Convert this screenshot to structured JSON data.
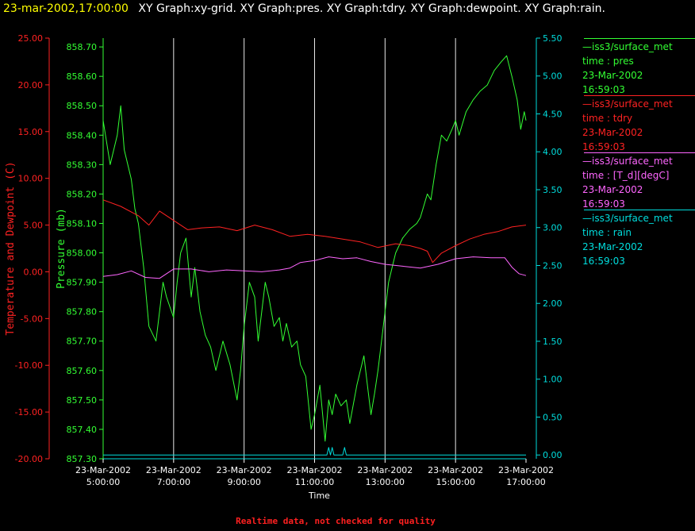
{
  "header": {
    "timestamp": "23-mar-2002,17:00:00",
    "titles": "XY Graph:xy-grid.  XY Graph:pres.  XY Graph:tdry.  XY Graph:dewpoint.  XY Graph:rain."
  },
  "footer": "Realtime data, not checked for quality",
  "legend": [
    {
      "line1": "—iss3/surface_met",
      "line2": "time : pres",
      "line3": "23-Mar-2002",
      "line4": "16:59:03",
      "color": "#33ff33"
    },
    {
      "line1": "—iss3/surface_met",
      "line2": "time : tdry",
      "line3": "23-Mar-2002",
      "line4": "16:59:03",
      "color": "#ff2222"
    },
    {
      "line1": "—iss3/surface_met",
      "line2": "time : [T_d][degC]",
      "line3": "23-Mar-2002",
      "line4": "16:59:03",
      "color": "#ff66ff"
    },
    {
      "line1": "—iss3/surface_met",
      "line2": "time : rain",
      "line3": "23-Mar-2002",
      "line4": "16:59:03",
      "color": "#00dddd"
    }
  ],
  "chart_data": {
    "type": "line",
    "xlabel": "Time",
    "x_ticks": [
      {
        "h": 5,
        "date": "23-Mar-2002",
        "time": "5:00:00"
      },
      {
        "h": 7,
        "date": "23-Mar-2002",
        "time": "7:00:00"
      },
      {
        "h": 9,
        "date": "23-Mar-2002",
        "time": "9:00:00"
      },
      {
        "h": 11,
        "date": "23-Mar-2002",
        "time": "11:00:00"
      },
      {
        "h": 13,
        "date": "23-Mar-2002",
        "time": "13:00:00"
      },
      {
        "h": 15,
        "date": "23-Mar-2002",
        "time": "15:00:00"
      },
      {
        "h": 17,
        "date": "23-Mar-2002",
        "time": "17:00:00"
      }
    ],
    "xlim": [
      5,
      17
    ],
    "grid": "vertical",
    "axes": {
      "temp": {
        "label": "Temperature and Dewpoint (C)",
        "ylim": [
          -20,
          25
        ],
        "ticks": [
          "25.00",
          "20.00",
          "15.00",
          "10.00",
          "5.00",
          "0.00",
          "-5.00",
          "-10.00",
          "-15.00",
          "-20.00"
        ],
        "color": "#ff2222"
      },
      "pres": {
        "label": "Pressure (mb)",
        "ylim": [
          857.3,
          858.73
        ],
        "ticks": [
          "858.70",
          "858.60",
          "858.50",
          "858.40",
          "858.30",
          "858.20",
          "858.10",
          "858.00",
          "857.90",
          "857.80",
          "857.70",
          "857.60",
          "857.50",
          "857.40",
          "857.30"
        ],
        "color": "#33ff33"
      },
      "rain": {
        "label": "",
        "ylim": [
          -0.05,
          5.5
        ],
        "ticks": [
          "5.50",
          "5.00",
          "4.50",
          "4.00",
          "3.50",
          "3.00",
          "2.50",
          "2.00",
          "1.50",
          "1.00",
          "0.50",
          "0.00"
        ],
        "color": "#00dddd"
      }
    },
    "series": [
      {
        "axis": "pres",
        "color": "#33ff33",
        "x": [
          5.0,
          5.2,
          5.4,
          5.5,
          5.6,
          5.8,
          5.9,
          6.0,
          6.15,
          6.3,
          6.5,
          6.6,
          6.7,
          6.8,
          7.0,
          7.1,
          7.2,
          7.35,
          7.5,
          7.6,
          7.75,
          7.9,
          8.05,
          8.2,
          8.4,
          8.6,
          8.8,
          8.9,
          9.0,
          9.15,
          9.3,
          9.4,
          9.5,
          9.6,
          9.7,
          9.85,
          10.0,
          10.1,
          10.2,
          10.35,
          10.5,
          10.6,
          10.75,
          10.9,
          11.0,
          11.15,
          11.3,
          11.4,
          11.5,
          11.6,
          11.75,
          11.9,
          12.0,
          12.2,
          12.4,
          12.5,
          12.6,
          12.7,
          12.8,
          12.9,
          13.0,
          13.1,
          13.2,
          13.3,
          13.5,
          13.7,
          13.9,
          14.0,
          14.2,
          14.3,
          14.45,
          14.6,
          14.75,
          14.9,
          15.0,
          15.1,
          15.3,
          15.5,
          15.7,
          15.9,
          16.1,
          16.3,
          16.45,
          16.6,
          16.75,
          16.85,
          16.95,
          17.0
        ],
        "y": [
          858.45,
          858.3,
          858.4,
          858.5,
          858.35,
          858.25,
          858.15,
          858.1,
          857.95,
          857.75,
          857.7,
          857.8,
          857.9,
          857.85,
          857.78,
          857.9,
          858.0,
          858.05,
          857.85,
          857.95,
          857.8,
          857.72,
          857.68,
          857.6,
          857.7,
          857.62,
          857.5,
          857.6,
          857.75,
          857.9,
          857.85,
          857.7,
          857.8,
          857.9,
          857.85,
          857.75,
          857.78,
          857.7,
          857.76,
          857.68,
          857.7,
          857.62,
          857.58,
          857.4,
          857.45,
          857.55,
          857.36,
          857.5,
          857.45,
          857.52,
          857.48,
          857.5,
          857.42,
          857.55,
          857.65,
          857.55,
          857.45,
          857.52,
          857.6,
          857.7,
          857.8,
          857.9,
          857.95,
          858.0,
          858.05,
          858.08,
          858.1,
          858.12,
          858.2,
          858.18,
          858.3,
          858.4,
          858.38,
          858.42,
          858.45,
          858.4,
          858.48,
          858.52,
          858.55,
          858.57,
          858.62,
          858.65,
          858.67,
          858.6,
          858.52,
          858.42,
          858.48,
          858.45
        ]
      },
      {
        "axis": "temp",
        "color": "#ff2222",
        "x": [
          5.0,
          5.5,
          6.0,
          6.3,
          6.6,
          7.0,
          7.4,
          7.8,
          8.3,
          8.8,
          9.3,
          9.8,
          10.3,
          10.8,
          11.3,
          11.8,
          12.3,
          12.8,
          13.3,
          13.7,
          14.0,
          14.2,
          14.35,
          14.6,
          15.0,
          15.4,
          15.8,
          16.2,
          16.6,
          17.0
        ],
        "y": [
          7.7,
          7.0,
          6.0,
          5.0,
          6.5,
          5.5,
          4.5,
          4.7,
          4.8,
          4.4,
          5.0,
          4.5,
          3.8,
          4.0,
          3.8,
          3.5,
          3.2,
          2.6,
          3.0,
          2.8,
          2.5,
          2.2,
          1.0,
          2.0,
          2.8,
          3.5,
          4.0,
          4.3,
          4.8,
          5.0
        ]
      },
      {
        "axis": "temp",
        "color": "#ff66ff",
        "x": [
          5.0,
          5.4,
          5.8,
          6.2,
          6.6,
          7.0,
          7.5,
          8.0,
          8.5,
          9.0,
          9.5,
          10.0,
          10.3,
          10.6,
          11.0,
          11.4,
          11.8,
          12.2,
          12.6,
          13.0,
          13.5,
          14.0,
          14.5,
          15.0,
          15.5,
          16.0,
          16.4,
          16.6,
          16.8,
          17.0
        ],
        "y": [
          -0.5,
          -0.3,
          0.1,
          -0.6,
          -0.7,
          0.3,
          0.3,
          0.0,
          0.2,
          0.1,
          0.0,
          0.2,
          0.4,
          1.0,
          1.2,
          1.6,
          1.4,
          1.5,
          1.1,
          0.8,
          0.6,
          0.4,
          0.8,
          1.4,
          1.6,
          1.5,
          1.5,
          0.5,
          -0.2,
          -0.4
        ]
      },
      {
        "axis": "rain",
        "color": "#00dddd",
        "x": [
          5.0,
          11.35,
          11.4,
          11.45,
          11.5,
          11.55,
          11.6,
          11.8,
          11.85,
          11.9,
          12.1,
          17.0
        ],
        "y": [
          0.0,
          0.0,
          0.1,
          0.0,
          0.1,
          0.0,
          0.0,
          0.0,
          0.1,
          0.0,
          0.0,
          0.0
        ]
      }
    ]
  }
}
